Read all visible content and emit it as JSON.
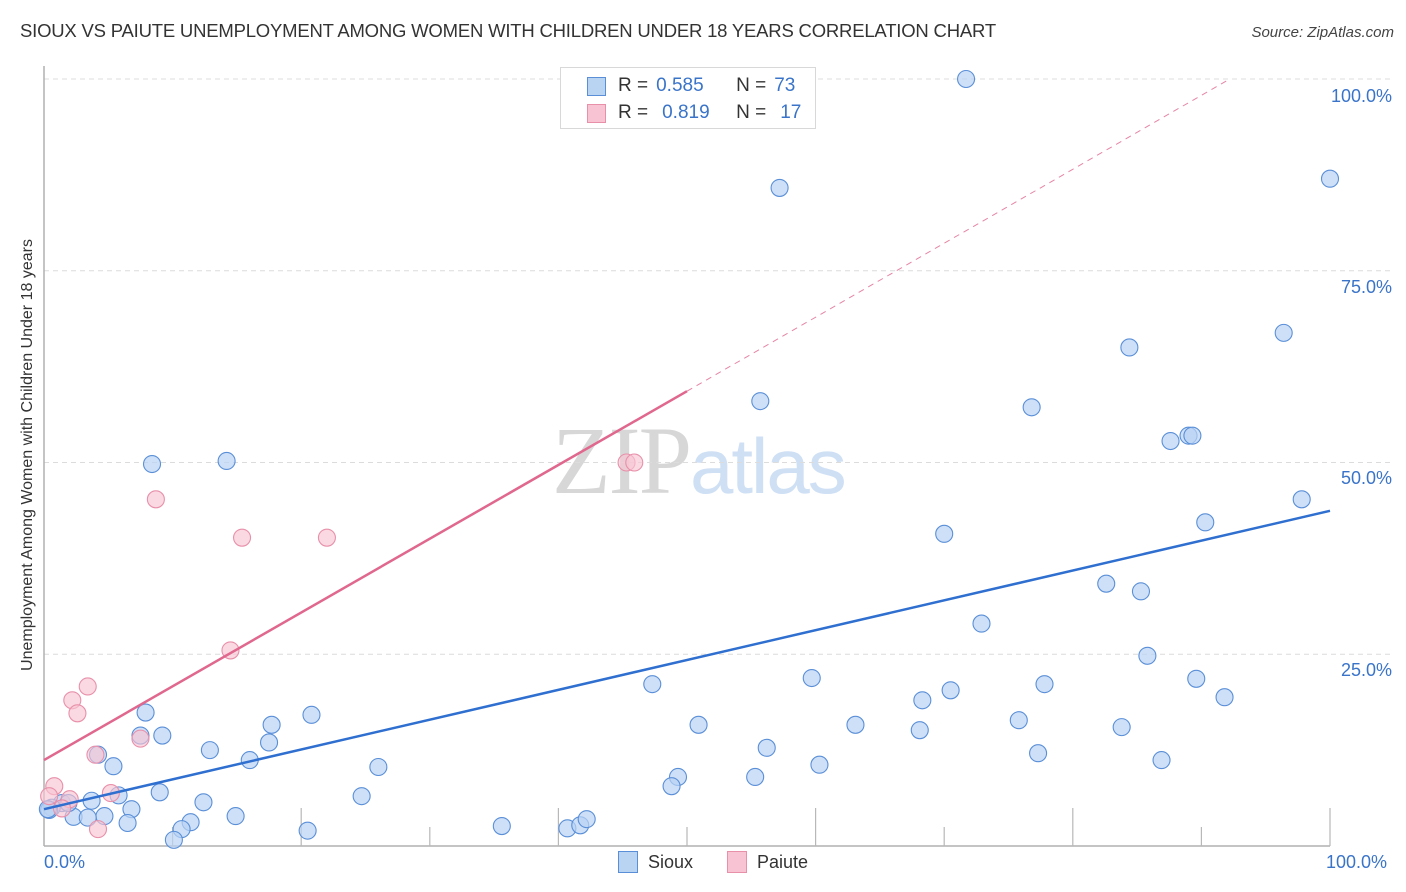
{
  "header": {
    "title": "SIOUX VS PAIUTE UNEMPLOYMENT AMONG WOMEN WITH CHILDREN UNDER 18 YEARS CORRELATION CHART",
    "source": "Source: ZipAtlas.com"
  },
  "watermark": {
    "zip": "ZIP",
    "atlas": "atlas"
  },
  "legend": {
    "rows": [
      {
        "r_label": "R =",
        "r_value": "0.585",
        "n_label": "N =",
        "n_value": "73"
      },
      {
        "r_label": "R =",
        "r_value": "0.819",
        "n_label": "N =",
        "n_value": "17"
      }
    ]
  },
  "bottom_legend": {
    "series": [
      "Sioux",
      "Paiute"
    ]
  },
  "axes": {
    "ylabel": "Unemployment Among Women with Children Under 18 years",
    "yticks": [
      "100.0%",
      "75.0%",
      "50.0%",
      "25.0%"
    ],
    "xticks": [
      "0.0%",
      "100.0%"
    ]
  },
  "colors": {
    "sioux_fill": "#b9d3f3",
    "sioux_stroke": "#5a8fd8",
    "sioux_line": "#2f6fd0",
    "paiute_fill": "#f8c4d3",
    "paiute_stroke": "#e890aa",
    "paiute_line": "#e0678e",
    "tick_text": "#3a74c9"
  },
  "chart_data": {
    "type": "scatter",
    "title": "SIOUX VS PAIUTE UNEMPLOYMENT AMONG WOMEN WITH CHILDREN UNDER 18 YEARS CORRELATION CHART",
    "xlabel": "",
    "ylabel": "Unemployment Among Women with Children Under 18 years",
    "xlim": [
      0,
      100
    ],
    "ylim": [
      0,
      100
    ],
    "x_tick_labels": [
      "0.0%",
      "100.0%"
    ],
    "y_tick_labels": [
      "25.0%",
      "50.0%",
      "75.0%",
      "100.0%"
    ],
    "grid": true,
    "legend_position": "top-center",
    "series": [
      {
        "name": "Sioux",
        "R": 0.585,
        "N": 73,
        "trend": {
          "x0": 0,
          "y0": 4.8,
          "x1": 100,
          "y1": 43.7
        },
        "points": [
          [
            71.7,
            100.0
          ],
          [
            57.2,
            85.8
          ],
          [
            100.0,
            87.0
          ],
          [
            96.4,
            66.9
          ],
          [
            84.4,
            65.0
          ],
          [
            55.7,
            58.0
          ],
          [
            76.8,
            57.2
          ],
          [
            87.6,
            52.8
          ],
          [
            89.0,
            53.5
          ],
          [
            89.3,
            53.5
          ],
          [
            8.4,
            49.8
          ],
          [
            14.2,
            50.2
          ],
          [
            97.8,
            45.2
          ],
          [
            90.3,
            42.2
          ],
          [
            70.0,
            40.7
          ],
          [
            82.6,
            34.2
          ],
          [
            85.3,
            33.2
          ],
          [
            72.9,
            29.0
          ],
          [
            85.8,
            24.8
          ],
          [
            47.3,
            21.1
          ],
          [
            59.7,
            21.9
          ],
          [
            77.8,
            21.1
          ],
          [
            89.6,
            21.8
          ],
          [
            68.3,
            19.0
          ],
          [
            70.5,
            20.3
          ],
          [
            91.8,
            19.4
          ],
          [
            7.9,
            17.4
          ],
          [
            75.8,
            16.4
          ],
          [
            83.8,
            15.5
          ],
          [
            63.1,
            15.8
          ],
          [
            50.9,
            15.8
          ],
          [
            68.1,
            15.1
          ],
          [
            17.7,
            15.8
          ],
          [
            20.8,
            17.1
          ],
          [
            7.5,
            14.4
          ],
          [
            9.2,
            14.4
          ],
          [
            17.5,
            13.5
          ],
          [
            12.9,
            12.5
          ],
          [
            56.2,
            12.8
          ],
          [
            77.3,
            12.1
          ],
          [
            16.0,
            11.2
          ],
          [
            5.4,
            10.4
          ],
          [
            26.0,
            10.3
          ],
          [
            60.3,
            10.6
          ],
          [
            86.9,
            11.2
          ],
          [
            49.3,
            9.0
          ],
          [
            55.3,
            9.0
          ],
          [
            48.8,
            7.8
          ],
          [
            4.2,
            11.9
          ],
          [
            5.8,
            6.6
          ],
          [
            9.0,
            7.0
          ],
          [
            24.7,
            6.5
          ],
          [
            12.4,
            5.7
          ],
          [
            3.7,
            5.9
          ],
          [
            6.8,
            4.8
          ],
          [
            14.9,
            3.9
          ],
          [
            4.7,
            3.9
          ],
          [
            2.3,
            3.8
          ],
          [
            3.4,
            3.7
          ],
          [
            1.4,
            5.6
          ],
          [
            1.9,
            5.6
          ],
          [
            0.6,
            5.0
          ],
          [
            0.4,
            4.7
          ],
          [
            6.5,
            3.0
          ],
          [
            11.4,
            3.1
          ],
          [
            10.7,
            2.2
          ],
          [
            10.1,
            0.8
          ],
          [
            20.5,
            2.0
          ],
          [
            35.6,
            2.6
          ],
          [
            40.7,
            2.3
          ],
          [
            41.7,
            2.7
          ],
          [
            42.2,
            3.5
          ],
          [
            0.3,
            4.8
          ]
        ]
      },
      {
        "name": "Paiute",
        "R": 0.819,
        "N": 17,
        "trend": {
          "x0": 0,
          "y0": 11.2,
          "x1": 50,
          "y1": 59.3,
          "dashed_to": {
            "x": 92,
            "y": 99.8
          }
        },
        "points": [
          [
            8.7,
            45.2
          ],
          [
            15.4,
            40.2
          ],
          [
            22.0,
            40.2
          ],
          [
            45.3,
            50.0
          ],
          [
            45.9,
            50.0
          ],
          [
            14.5,
            25.5
          ],
          [
            3.4,
            20.8
          ],
          [
            2.2,
            19.0
          ],
          [
            2.6,
            17.3
          ],
          [
            4.0,
            11.9
          ],
          [
            7.5,
            14.0
          ],
          [
            0.8,
            7.8
          ],
          [
            0.4,
            6.5
          ],
          [
            2.0,
            6.1
          ],
          [
            1.4,
            4.9
          ],
          [
            5.2,
            6.9
          ],
          [
            4.2,
            2.2
          ]
        ]
      }
    ]
  }
}
